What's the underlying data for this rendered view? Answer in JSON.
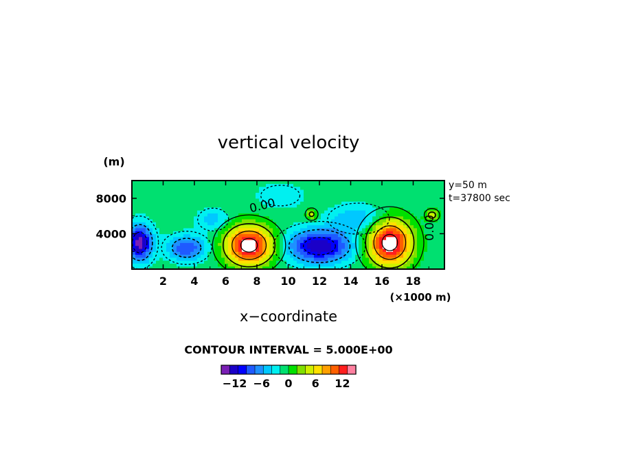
{
  "chart_data": {
    "type": "heatmap",
    "title": "vertical velocity",
    "xlabel": "x−coordinate",
    "ylabel": "(m)",
    "x_unit_label": "(×1000 m)",
    "annotations": [
      "y=50 m",
      "t=37800 sec"
    ],
    "contour_interval_text": "CONTOUR INTERVAL = 5.000E+00",
    "contour_labels": [
      "0.00",
      "0.00"
    ],
    "xlim": [
      0,
      20
    ],
    "ylim": [
      0,
      10000
    ],
    "x_ticks": [
      2,
      4,
      6,
      8,
      10,
      12,
      14,
      16,
      18
    ],
    "x_tick_labels": [
      "2",
      "4",
      "6",
      "8",
      "10",
      "12",
      "14",
      "16",
      "18"
    ],
    "y_ticks": [
      4000,
      8000
    ],
    "y_tick_labels": [
      "4000",
      "8000"
    ],
    "colorbar": {
      "levels": [
        -15,
        -13,
        -11,
        -9,
        -7,
        -5,
        -3,
        -1,
        1,
        3,
        5,
        7,
        9,
        11,
        13,
        15
      ],
      "colors": [
        "#7a1fb5",
        "#1a00c8",
        "#0000ff",
        "#1f5aff",
        "#1e90ff",
        "#00c8ff",
        "#00f0f0",
        "#00e070",
        "#00e000",
        "#80e000",
        "#d0f000",
        "#ffe000",
        "#ffa000",
        "#ff6000",
        "#ff1e1e",
        "#ff80a0"
      ],
      "tick_values": [
        -12,
        -6,
        0,
        6,
        12
      ],
      "tick_labels": [
        "−12",
        "−6",
        "0",
        "6",
        "12"
      ]
    },
    "features": [
      {
        "kind": "updraft",
        "x": 7.5,
        "y": 2700,
        "rx": 1.5,
        "ry": 2200,
        "peak": 17
      },
      {
        "kind": "updraft",
        "x": 16.5,
        "y": 3000,
        "rx": 1.4,
        "ry": 2600,
        "peak": 17
      },
      {
        "kind": "updraft",
        "x": 11.5,
        "y": 6200,
        "rx": 0.35,
        "ry": 600,
        "peak": 6
      },
      {
        "kind": "updraft",
        "x": 19.2,
        "y": 6100,
        "rx": 0.4,
        "ry": 600,
        "peak": 7
      },
      {
        "kind": "downdraft",
        "x": 12.0,
        "y": 2600,
        "rx": 2.0,
        "ry": 1900,
        "peak": -13
      },
      {
        "kind": "downdraft",
        "x": 0.5,
        "y": 3000,
        "rx": 0.8,
        "ry": 2000,
        "peak": -14
      },
      {
        "kind": "downdraft",
        "x": 3.5,
        "y": 2400,
        "rx": 1.2,
        "ry": 1400,
        "peak": -9
      },
      {
        "kind": "downdraft",
        "x": 5.2,
        "y": 5600,
        "rx": 1.0,
        "ry": 1300,
        "peak": -4
      },
      {
        "kind": "downdraft",
        "x": 14.5,
        "y": 5700,
        "rx": 1.8,
        "ry": 1600,
        "peak": -5
      },
      {
        "kind": "downdraft",
        "x": 9.5,
        "y": 8300,
        "rx": 1.5,
        "ry": 1400,
        "peak": -3
      }
    ]
  },
  "colors": {
    "background": "#ffffff",
    "axis": "#000000",
    "contour": "#000000"
  }
}
